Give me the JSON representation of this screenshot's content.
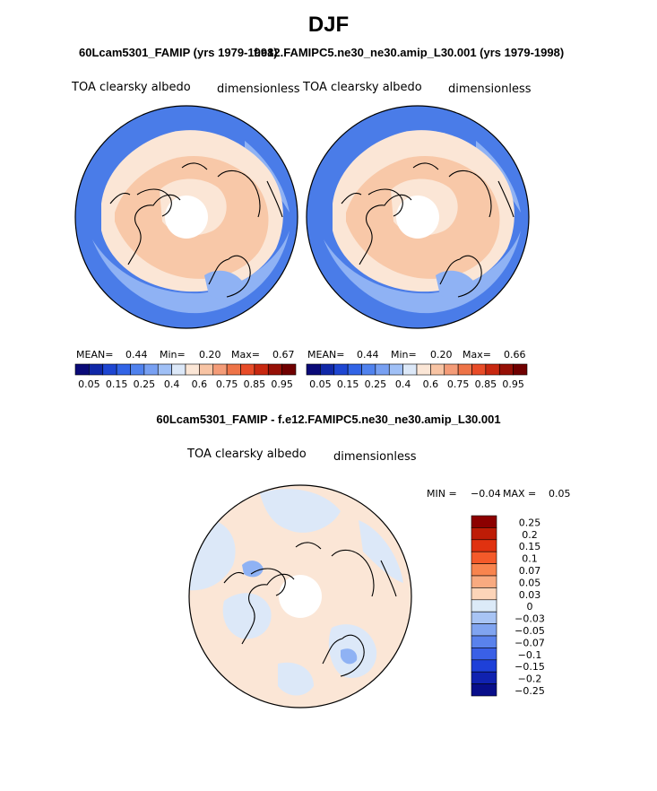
{
  "title": "DJF",
  "panels": {
    "left_subtitle": "60Lcam5301_FAMIP (yrs 1979-1998)",
    "right_subtitle": "f.e12.FAMIPC5.ne30_ne30.amip_L30.001 (yrs 1979-1998)",
    "left": {
      "variable": "TOA clearsky albedo",
      "units": "dimensionless",
      "mean_label": "MEAN=",
      "mean": "0.44",
      "min_label": "Min=",
      "min": "0.20",
      "max_label": "Max=",
      "max": "0.67"
    },
    "right": {
      "variable": "TOA clearsky albedo",
      "units": "dimensionless",
      "mean_label": "MEAN=",
      "mean": "0.44",
      "min_label": "Min=",
      "min": "0.20",
      "max_label": "Max=",
      "max": "0.66"
    },
    "abs_colorbar": {
      "colors": [
        "#0a0a78",
        "#1028a8",
        "#1e46d2",
        "#3264e6",
        "#5082ee",
        "#78a0f2",
        "#a0c0f6",
        "#dce8f8",
        "#fbe6d6",
        "#f8c4a4",
        "#f49c78",
        "#ee7448",
        "#e84c28",
        "#c82810",
        "#961006",
        "#700000"
      ],
      "labels": [
        "0.05",
        "0.15",
        "0.25",
        "0.4",
        "0.6",
        "0.75",
        "0.85",
        "0.95"
      ]
    },
    "diff": {
      "subtitle": "60Lcam5301_FAMIP - f.e12.FAMIPC5.ne30_ne30.amip_L30.001",
      "variable": "TOA clearsky albedo",
      "units": "dimensionless",
      "min_label": "MIN =",
      "min": "−0.04",
      "max_label": "MAX =",
      "max": "0.05"
    },
    "diff_colorbar": {
      "colors": [
        "#8c0000",
        "#be1c06",
        "#e03210",
        "#f45a2a",
        "#f8844e",
        "#f8aa80",
        "#fcd4b8",
        "#dceaf8",
        "#a8c4f4",
        "#80a4f0",
        "#5a82ec",
        "#3a60e6",
        "#1e40d8",
        "#1022b0",
        "#080e8a"
      ],
      "labels": [
        "0.25",
        "0.2",
        "0.15",
        "0.1",
        "0.07",
        "0.05",
        "0.03",
        "0",
        "−0.03",
        "−0.05",
        "−0.07",
        "−0.1",
        "−0.15",
        "−0.2",
        "−0.25"
      ]
    },
    "colors": {
      "ocean_blue": "#4a7ce8",
      "mid_blue": "#8fb2f4",
      "light_blue": "#dce8f8",
      "land_peach": "#f8c8a8",
      "light_peach": "#fbe6d6",
      "coast": "#000000"
    }
  }
}
